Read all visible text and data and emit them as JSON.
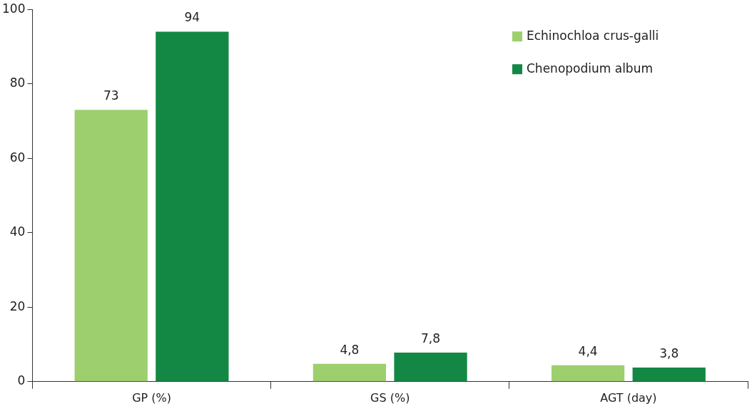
{
  "chart_data": {
    "type": "bar",
    "categories": [
      "GP (%)",
      "GS (%)",
      "AGT (day)"
    ],
    "series": [
      {
        "name": "Echinochloa crus-galli",
        "color": "#9dcf6e",
        "values": [
          73,
          4.8,
          4.4
        ],
        "value_labels": [
          "73",
          "4,8",
          "4,4"
        ]
      },
      {
        "name": "Chenopodium album",
        "color": "#138844",
        "values": [
          94,
          7.8,
          3.8
        ],
        "value_labels": [
          "94",
          "7,8",
          "3,8"
        ]
      }
    ],
    "ylim": [
      0,
      100
    ],
    "yticks": [
      0,
      20,
      40,
      60,
      80,
      100
    ],
    "grid": false,
    "legend": "top right"
  }
}
